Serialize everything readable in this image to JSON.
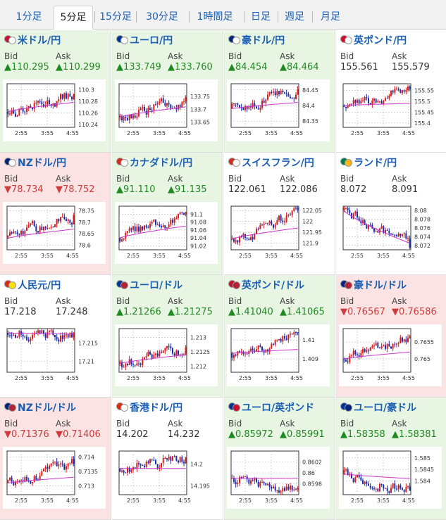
{
  "tabs": [
    "1分足",
    "5分足",
    "15分足",
    "30分足",
    "1時間足",
    "日足",
    "週足",
    "月足"
  ],
  "active_tab": "5分足",
  "labels": {
    "bid": "Bid",
    "ask": "Ask"
  },
  "colors": {
    "up_bg": "#e8f5e3",
    "down_bg": "#fbe3e3",
    "flat_bg": "#ffffff",
    "candle_up": "#d81b1b",
    "candle_down": "#1c2ea8",
    "moving_average": "#cc33cc",
    "link": "#1a5fb4"
  },
  "pairs": [
    {
      "name": "米ドル/円",
      "flag": [
        "#c8102e",
        "#ffffff"
      ],
      "state": "up",
      "bid": "▲110.295",
      "ask": "▲110.299",
      "chart_data": {
        "type": "candlestick",
        "x_ticks": [
          "2:55",
          "3:55",
          "4:55"
        ],
        "y_ticks": [
          "110.3",
          "110.28",
          "110.26",
          "110.24"
        ],
        "y_range": [
          110.235,
          110.31
        ],
        "start": 110.262,
        "end": 110.292,
        "ma_end": 110.278
      }
    },
    {
      "name": "ユーロ/円",
      "flag": [
        "#003399",
        "#ffffff"
      ],
      "state": "up",
      "bid": "▲133.749",
      "ask": "▲133.760",
      "chart_data": {
        "type": "candlestick",
        "x_ticks": [
          "2:55",
          "3:55",
          "4:55"
        ],
        "y_ticks": [
          "133.75",
          "133.7",
          "133.65"
        ],
        "y_range": [
          133.63,
          133.8
        ],
        "start": 133.67,
        "end": 133.748,
        "ma_end": 133.71
      }
    },
    {
      "name": "豪ドル/円",
      "flag": [
        "#00247d",
        "#ffffff"
      ],
      "state": "up",
      "bid": "▲84.454",
      "ask": "▲84.464",
      "chart_data": {
        "type": "candlestick",
        "x_ticks": [
          "2:55",
          "3:55",
          "4:55"
        ],
        "y_ticks": [
          "84.45",
          "84.4",
          "84.35"
        ],
        "y_range": [
          84.33,
          84.47
        ],
        "start": 84.39,
        "end": 84.452,
        "ma_end": 84.41
      }
    },
    {
      "name": "英ポンド/円",
      "flag": [
        "#c8102e",
        "#ffffff"
      ],
      "state": "flat",
      "bid": "155.561",
      "ask": "155.579",
      "chart_data": {
        "type": "candlestick",
        "x_ticks": [
          "2:55",
          "3:55",
          "4:55"
        ],
        "y_ticks": [
          "155.55",
          "155.5",
          "155.45",
          "155.4"
        ],
        "y_range": [
          155.38,
          155.58
        ],
        "start": 155.48,
        "end": 155.555,
        "ma_end": 155.49
      }
    },
    {
      "name": "NZドル/円",
      "flag": [
        "#00247d",
        "#ffffff"
      ],
      "state": "down",
      "bid": "▼78.734",
      "ask": "▼78.752",
      "chart_data": {
        "type": "candlestick",
        "x_ticks": [
          "2:55",
          "3:55",
          "4:55"
        ],
        "y_ticks": [
          "78.75",
          "78.7",
          "78.65",
          "78.6"
        ],
        "y_range": [
          78.58,
          78.77
        ],
        "start": 78.63,
        "end": 78.73,
        "ma_end": 78.67
      }
    },
    {
      "name": "カナダドル/円",
      "flag": [
        "#d52b1e",
        "#ffffff"
      ],
      "state": "up",
      "bid": "▲91.110",
      "ask": "▲91.135",
      "chart_data": {
        "type": "candlestick",
        "x_ticks": [
          "2:55",
          "3:55",
          "4:55"
        ],
        "y_ticks": [
          "91.1",
          "91.08",
          "91.06",
          "91.04",
          "91.02"
        ],
        "y_range": [
          91.01,
          91.12
        ],
        "start": 91.04,
        "end": 91.105,
        "ma_end": 91.07
      }
    },
    {
      "name": "スイスフラン/円",
      "flag": [
        "#d52b1e",
        "#ffffff"
      ],
      "state": "flat",
      "bid": "122.061",
      "ask": "122.086",
      "chart_data": {
        "type": "candlestick",
        "x_ticks": [
          "2:55",
          "3:55",
          "4:55"
        ],
        "y_ticks": [
          "122.05",
          "122",
          "121.95",
          "121.9"
        ],
        "y_range": [
          121.87,
          122.07
        ],
        "start": 121.92,
        "end": 122.055,
        "ma_end": 121.97
      }
    },
    {
      "name": "ランド/円",
      "flag": [
        "#007a4d",
        "#ffb612"
      ],
      "state": "flat",
      "bid": "8.072",
      "ask": "8.091",
      "chart_data": {
        "type": "candlestick",
        "x_ticks": [
          "2:55",
          "3:55",
          "4:55"
        ],
        "y_ticks": [
          "8.08",
          "8.078",
          "8.076",
          "8.074",
          "8.072"
        ],
        "y_range": [
          8.071,
          8.081
        ],
        "start": 8.08,
        "end": 8.0715,
        "ma_end": 8.0725
      }
    },
    {
      "name": "人民元/円",
      "flag": [
        "#de2910",
        "#ffde00"
      ],
      "state": "flat",
      "bid": "17.218",
      "ask": "17.248",
      "chart_data": {
        "type": "candlestick",
        "x_ticks": [
          "2:55",
          "3:55",
          "4:55"
        ],
        "y_ticks": [
          "17.215",
          "17.21"
        ],
        "y_range": [
          17.207,
          17.219
        ],
        "start": 17.2178,
        "end": 17.2178,
        "ma_end": 17.2175
      }
    },
    {
      "name": "ユーロ/ドル",
      "flag": [
        "#003399",
        "#b22234"
      ],
      "state": "up",
      "bid": "▲1.21266",
      "ask": "▲1.21275",
      "chart_data": {
        "type": "candlestick",
        "x_ticks": [
          "2:55",
          "3:55",
          "4:55"
        ],
        "y_ticks": [
          "1.213",
          "1.2125",
          "1.212"
        ],
        "y_range": [
          1.2118,
          1.2133
        ],
        "start": 1.2121,
        "end": 1.21266,
        "ma_end": 1.2124
      }
    },
    {
      "name": "英ポンド/ドル",
      "flag": [
        "#c8102e",
        "#b22234"
      ],
      "state": "up",
      "bid": "▲1.41040",
      "ask": "▲1.41065",
      "chart_data": {
        "type": "candlestick",
        "x_ticks": [
          "2:55",
          "3:55",
          "4:55"
        ],
        "y_ticks": [
          "1.41",
          "1.409"
        ],
        "y_range": [
          1.4083,
          1.4106
        ],
        "start": 1.4093,
        "end": 1.4104,
        "ma_end": 1.4095
      }
    },
    {
      "name": "豪ドル/ドル",
      "flag": [
        "#00247d",
        "#b22234"
      ],
      "state": "down",
      "bid": "▼0.76567",
      "ask": "▼0.76586",
      "chart_data": {
        "type": "candlestick",
        "x_ticks": [
          "2:55",
          "3:55",
          "4:55"
        ],
        "y_ticks": [
          "0.7655",
          "0.765"
        ],
        "y_range": [
          0.7646,
          0.7659
        ],
        "start": 0.765,
        "end": 0.76567,
        "ma_end": 0.7652
      }
    },
    {
      "name": "NZドル/ドル",
      "flag": [
        "#00247d",
        "#b22234"
      ],
      "state": "down",
      "bid": "▼0.71376",
      "ask": "▼0.71406",
      "chart_data": {
        "type": "candlestick",
        "x_ticks": [
          "2:55",
          "3:55",
          "4:55"
        ],
        "y_ticks": [
          "0.714",
          "0.7135",
          "0.713"
        ],
        "y_range": [
          0.7127,
          0.7142
        ],
        "start": 0.7131,
        "end": 0.71376,
        "ma_end": 0.7133
      }
    },
    {
      "name": "香港ドル/円",
      "flag": [
        "#de2910",
        "#ffffff"
      ],
      "state": "flat",
      "bid": "14.202",
      "ask": "14.232",
      "chart_data": {
        "type": "candlestick",
        "x_ticks": [
          "2:55",
          "3:55",
          "4:55"
        ],
        "y_ticks": [
          "14.2",
          "14.195"
        ],
        "y_range": [
          14.193,
          14.203
        ],
        "start": 14.199,
        "end": 14.2015,
        "ma_end": 14.199
      }
    },
    {
      "name": "ユーロ/英ポンド",
      "flag": [
        "#003399",
        "#c8102e"
      ],
      "state": "up",
      "bid": "▲0.85972",
      "ask": "▲0.85991",
      "chart_data": {
        "type": "candlestick",
        "x_ticks": [
          "2:55",
          "3:55",
          "4:55"
        ],
        "y_ticks": [
          "0.8602",
          "0.86",
          "0.8598"
        ],
        "y_range": [
          0.8596,
          0.8604
        ],
        "start": 0.8599,
        "end": 0.85972,
        "ma_end": 0.8599
      }
    },
    {
      "name": "ユーロ/豪ドル",
      "flag": [
        "#003399",
        "#00247d"
      ],
      "state": "up",
      "bid": "▲1.58358",
      "ask": "▲1.58381",
      "chart_data": {
        "type": "candlestick",
        "x_ticks": [
          "2:55",
          "3:55",
          "4:55"
        ],
        "y_ticks": [
          "1.585",
          "1.5845",
          "1.584"
        ],
        "y_range": [
          1.5834,
          1.5853
        ],
        "start": 1.5843,
        "end": 1.58358,
        "ma_end": 1.5841
      }
    }
  ]
}
